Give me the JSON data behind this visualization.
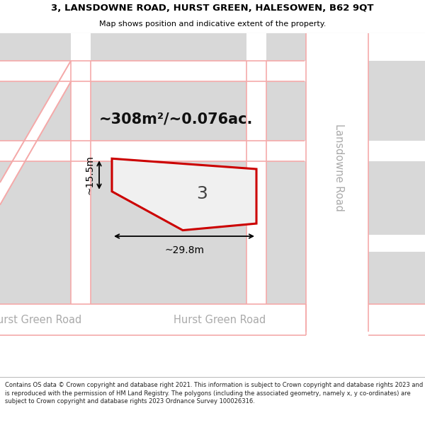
{
  "title_line1": "3, LANSDOWNE ROAD, HURST GREEN, HALESOWEN, B62 9QT",
  "title_line2": "Map shows position and indicative extent of the property.",
  "footer_text": "Contains OS data © Crown copyright and database right 2021. This information is subject to Crown copyright and database rights 2023 and is reproduced with the permission of HM Land Registry. The polygons (including the associated geometry, namely x, y co-ordinates) are subject to Crown copyright and database rights 2023 Ordnance Survey 100026316.",
  "area_label": "~308m²/~0.076ac.",
  "width_label": "~29.8m",
  "height_label": "~15.5m",
  "property_number": "3",
  "map_bg": "#f0f0f0",
  "block_color": "#d8d8d8",
  "road_bg": "#ffffff",
  "road_line_color": "#f5aaaa",
  "property_fill": "#f0f0f0",
  "property_stroke": "#cc0000",
  "road_label_color": "#aaaaaa",
  "title_color": "#000000",
  "lansdowne_road_label": "Lansdowne Road",
  "hurst_green_road_label1": "Hurst Green Road",
  "hurst_green_road_label2": "Hurst Green Road",
  "title_fontsize": 9.5,
  "subtitle_fontsize": 8.0,
  "footer_fontsize": 6.0,
  "road_label_fontsize": 10.5,
  "area_label_fontsize": 15,
  "dim_fontsize": 10,
  "prop_num_fontsize": 18
}
